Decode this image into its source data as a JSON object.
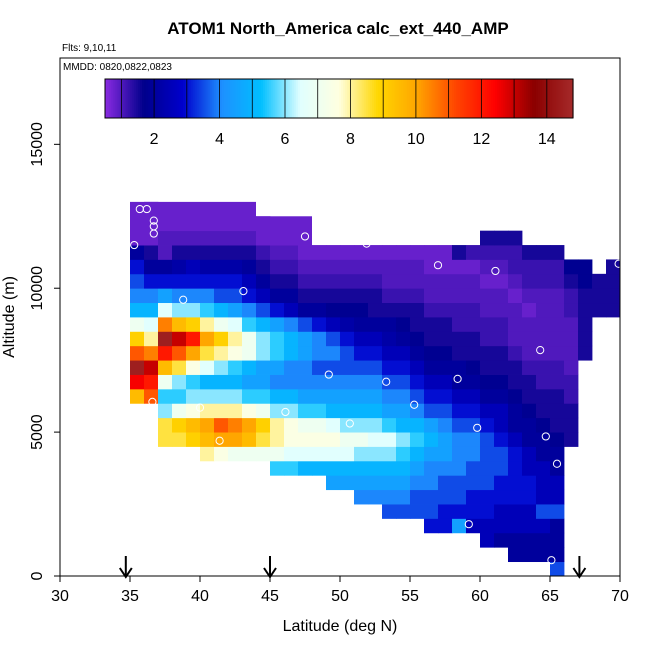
{
  "chart_data": {
    "type": "heatmap",
    "title": "ATOM1 North_America calc_ext_440_AMP",
    "flights_label": "Flts: 9,10,11",
    "dates_label": "MMDD: 0820,0822,0823",
    "xlabel": "Latitude (deg N)",
    "ylabel": "Altitude (m)",
    "xlim": [
      30,
      70
    ],
    "ylim": [
      0,
      18000
    ],
    "xticks": [
      30,
      35,
      40,
      45,
      50,
      55,
      60,
      65,
      70
    ],
    "yticks": [
      0,
      5000,
      10000,
      15000
    ],
    "colorbar": {
      "range": [
        0.5,
        14.8
      ],
      "ticks": [
        2,
        4,
        6,
        8,
        10,
        12,
        14
      ],
      "colors": [
        "#8a2be2",
        "#00008b",
        "#0000cd",
        "#1e90ff",
        "#00bfff",
        "#e0ffff",
        "#ffffe0",
        "#ffd700",
        "#ffa500",
        "#ff4500",
        "#ff0000",
        "#8b0000",
        "#a52a2a"
      ]
    },
    "grid_cell": {
      "dlat": 1,
      "dalt": 500
    },
    "columns": [
      {
        "lat": 35.5,
        "alt_min": 6000,
        "values": [
          9.5,
          12.5,
          14.5,
          11,
          9,
          7,
          5,
          4,
          3.5,
          3,
          2,
          1
        ]
      },
      {
        "lat": 36.5,
        "alt_min": 6000,
        "values": [
          11,
          12,
          13,
          10.5,
          8,
          6.5,
          5,
          4,
          3,
          2,
          1.5,
          1,
          0.8,
          0.8
        ]
      },
      {
        "lat": 37.5,
        "alt_min": 4500,
        "values": [
          8.5,
          8.5,
          6,
          5.5,
          7,
          9.5,
          12,
          14.5,
          10.5,
          6.5,
          4.5,
          3,
          2,
          1,
          1,
          0.8
        ]
      },
      {
        "lat": 38.5,
        "alt_min": 4500,
        "values": [
          8.5,
          9,
          7,
          5.5,
          6,
          8.5,
          11,
          13,
          9.5,
          6,
          4,
          3,
          2.2,
          1.5,
          1,
          0.8
        ]
      },
      {
        "lat": 39.5,
        "alt_min": 4500,
        "values": [
          9,
          9.5,
          7.5,
          6,
          5.5,
          7.5,
          10,
          12,
          9,
          6,
          4,
          3,
          2.5,
          1.5,
          1,
          0.8
        ]
      },
      {
        "lat": 40.5,
        "alt_min": 4000,
        "values": [
          8,
          9.5,
          10,
          8,
          6,
          5,
          6.5,
          8.5,
          10,
          8,
          5.5,
          4,
          3,
          2.2,
          1.5,
          1,
          0.8
        ]
      },
      {
        "lat": 41.5,
        "alt_min": 4000,
        "values": [
          7.5,
          10,
          11,
          8,
          6,
          5,
          6,
          8,
          9,
          7,
          5,
          3.5,
          3,
          2.2,
          1.5,
          1,
          0.8
        ]
      },
      {
        "lat": 42.5,
        "alt_min": 4000,
        "values": [
          7,
          10,
          10.5,
          8,
          6,
          5,
          5.5,
          7.5,
          8,
          6.5,
          4.5,
          3.5,
          3,
          2.2,
          1.5,
          1,
          0.8
        ]
      },
      {
        "lat": 43.5,
        "alt_min": 4000,
        "values": [
          7,
          9.5,
          10,
          7.5,
          5.5,
          4.5,
          5,
          7,
          7,
          5.5,
          4,
          3,
          2.5,
          2,
          1.5,
          1,
          0.8
        ]
      },
      {
        "lat": 44.5,
        "alt_min": 4000,
        "values": [
          7,
          8.5,
          9,
          7,
          5.5,
          4.5,
          4.5,
          6,
          6,
          5,
          3.5,
          2.5,
          2,
          1.5,
          1.2,
          1,
          0.8
        ]
      },
      {
        "lat": 45.5,
        "alt_min": 3500,
        "values": [
          5.5,
          7,
          8,
          8,
          6,
          5,
          4,
          4.5,
          5.5,
          5.5,
          4.5,
          3,
          2,
          1.5,
          1.2,
          1,
          0.8
        ]
      },
      {
        "lat": 46.5,
        "alt_min": 3500,
        "values": [
          5.5,
          6.5,
          7.5,
          7.5,
          6,
          5,
          4,
          4,
          5,
          5,
          4,
          2.5,
          2,
          1.5,
          1.2,
          1,
          0.8
        ]
      },
      {
        "lat": 47.5,
        "alt_min": 3500,
        "values": [
          5,
          6.5,
          7.5,
          7,
          5.5,
          4.5,
          4,
          4,
          4.5,
          4.5,
          3.5,
          2,
          1.5,
          1.2,
          1,
          0.8
        ]
      },
      {
        "lat": 48.5,
        "alt_min": 3500,
        "values": [
          5,
          6.5,
          7.5,
          7,
          5.5,
          4.5,
          4,
          3.5,
          4,
          4,
          3,
          2,
          1.5,
          1.2,
          1,
          0.8
        ]
      },
      {
        "lat": 49.5,
        "alt_min": 3000,
        "values": [
          4.5,
          5,
          6.5,
          7.5,
          6.5,
          5,
          4.5,
          4,
          3.5,
          4,
          3.5,
          2.5,
          1.8,
          1.5,
          1.2,
          1,
          0.8
        ]
      },
      {
        "lat": 50.5,
        "alt_min": 3000,
        "values": [
          4.5,
          5,
          6.5,
          7,
          6,
          5,
          4.5,
          4,
          3.5,
          3.5,
          3,
          2.2,
          1.8,
          1.5,
          1.2,
          1,
          0.8
        ]
      },
      {
        "lat": 51.5,
        "alt_min": 2500,
        "values": [
          4,
          4.5,
          5,
          6,
          7,
          6,
          5,
          4.5,
          4,
          3.5,
          3,
          2.5,
          2,
          1.8,
          1.5,
          1.2,
          1,
          0.8
        ]
      },
      {
        "lat": 52.5,
        "alt_min": 2500,
        "values": [
          4,
          4.5,
          5,
          6,
          6.5,
          6,
          5,
          4.5,
          4,
          3.5,
          3,
          2.5,
          2,
          1.5,
          1.5,
          1.2,
          1,
          0.8
        ]
      },
      {
        "lat": 53.5,
        "alt_min": 2000,
        "values": [
          3.5,
          4,
          4.5,
          5,
          6,
          6.5,
          5.5,
          4.5,
          4,
          3.5,
          3,
          2.5,
          2.2,
          2,
          1.5,
          1.2,
          1,
          1,
          0.8
        ]
      },
      {
        "lat": 54.5,
        "alt_min": 2000,
        "values": [
          3.5,
          4,
          4.5,
          5,
          5.5,
          6,
          5,
          4.5,
          4,
          3.5,
          3,
          2.5,
          2,
          1.8,
          1.5,
          1.2,
          1,
          1,
          0.8
        ]
      },
      {
        "lat": 55.5,
        "alt_min": 2000,
        "values": [
          3.5,
          3.5,
          4,
          4.5,
          5,
          5.5,
          5,
          4,
          3.5,
          3,
          2.5,
          2,
          1.8,
          1.5,
          1.5,
          1.2,
          1,
          1,
          0.8
        ]
      },
      {
        "lat": 56.5,
        "alt_min": 1500,
        "values": [
          3,
          3.5,
          3.5,
          4,
          4,
          4.5,
          5,
          4.5,
          3.5,
          3,
          2.5,
          2,
          1.8,
          1.5,
          1.5,
          1.2,
          1,
          1,
          0.8,
          0.8
        ]
      },
      {
        "lat": 57.5,
        "alt_min": 1500,
        "values": [
          3,
          3,
          3.5,
          3.5,
          4,
          4.5,
          4.5,
          4,
          3.5,
          3,
          2.5,
          2,
          1.8,
          1.5,
          1.5,
          1.2,
          1,
          1,
          0.8,
          0.8
        ]
      },
      {
        "lat": 58.5,
        "alt_min": 1500,
        "values": [
          4.5,
          3,
          3.5,
          3.5,
          4,
          4,
          4,
          3.5,
          3,
          2.5,
          2,
          2,
          1.5,
          1.5,
          1.2,
          1.2,
          1,
          1,
          0.8,
          1.5
        ]
      },
      {
        "lat": 59.5,
        "alt_min": 1500,
        "values": [
          2.5,
          3,
          3,
          3.5,
          3.5,
          4,
          4,
          3.5,
          3,
          2.5,
          2,
          1.8,
          1.5,
          1.5,
          1.2,
          1.2,
          1,
          1,
          0.8,
          1.2
        ]
      },
      {
        "lat": 60.5,
        "alt_min": 1000,
        "values": [
          2.5,
          2.5,
          3,
          3,
          3.5,
          3.5,
          3.5,
          3.5,
          3,
          2.5,
          2,
          1.8,
          1.5,
          1.5,
          1.2,
          1.2,
          1,
          1,
          0.8,
          1,
          1.2,
          1.5
        ]
      },
      {
        "lat": 61.5,
        "alt_min": 1000,
        "values": [
          2,
          2.5,
          2.5,
          3,
          3,
          3.5,
          3.5,
          3,
          2.5,
          2.5,
          2,
          1.8,
          1.5,
          1.5,
          1.2,
          1.2,
          1,
          1,
          0.8,
          1,
          1.2,
          1.5
        ]
      },
      {
        "lat": 62.5,
        "alt_min": 500,
        "values": [
          2,
          2,
          2.5,
          2.5,
          3,
          3,
          3,
          3,
          2.5,
          2,
          2,
          1.8,
          1.5,
          1.5,
          1.2,
          1,
          1,
          1,
          0.8,
          1,
          1.2,
          1.2,
          1.5
        ]
      },
      {
        "lat": 63.5,
        "alt_min": 500,
        "values": [
          2,
          2,
          2.5,
          2.5,
          3,
          3,
          2.5,
          2.5,
          2,
          2,
          1.8,
          1.5,
          1.5,
          1.2,
          1,
          1,
          1,
          0.8,
          1,
          1.2,
          1.2,
          1.5
        ]
      },
      {
        "lat": 64.5,
        "alt_min": 500,
        "values": [
          2,
          2,
          2.5,
          3.5,
          2.5,
          2.5,
          2.5,
          2,
          2,
          1.8,
          1.5,
          1.5,
          1.2,
          1.2,
          1,
          1,
          1,
          1,
          1,
          1.2,
          1.2,
          1.5
        ]
      },
      {
        "lat": 65.5,
        "alt_min": 0,
        "values": [
          3.5,
          2,
          2,
          2,
          3.5,
          2.5,
          2.5,
          2,
          2,
          1.8,
          1.5,
          1.5,
          1.5,
          1.2,
          1.2,
          1,
          1,
          1,
          1,
          1,
          1.2,
          1.2,
          1.5
        ]
      },
      {
        "lat": 66.5,
        "alt_min": 4500,
        "values": [
          1.5,
          1.5,
          1.5,
          1.2,
          1.2,
          1,
          1,
          1,
          1,
          1.2,
          1.2,
          1.5,
          1.8
        ]
      },
      {
        "lat": 67.5,
        "alt_min": 7500,
        "values": [
          1.5,
          1.5,
          1.5,
          1.5,
          1.5,
          1.8,
          1.8
        ]
      },
      {
        "lat": 68.5,
        "alt_min": 9000,
        "values": [
          1.5,
          1.5,
          1.5
        ]
      },
      {
        "lat": 69.5,
        "alt_min": 9000,
        "values": [
          1.5,
          1.5,
          1.5,
          1.5
        ]
      }
    ],
    "band_top": [
      {
        "lat_min": 35,
        "lat_max": 37,
        "alt_min": 11500,
        "values": [
          0.8,
          0.8,
          0.8
        ]
      },
      {
        "lat_min": 37,
        "lat_max": 44,
        "alt_min": 12000,
        "values": [
          0.8,
          0.8
        ]
      },
      {
        "lat_min": 44,
        "lat_max": 48,
        "alt_min": 11500,
        "values": [
          0.8,
          0.8
        ]
      }
    ],
    "points": [
      {
        "lat": 35.7,
        "alt": 12750
      },
      {
        "lat": 36.2,
        "alt": 12750
      },
      {
        "lat": 36.7,
        "alt": 12350
      },
      {
        "lat": 36.7,
        "alt": 12150
      },
      {
        "lat": 36.7,
        "alt": 11900
      },
      {
        "lat": 35.3,
        "alt": 11500
      },
      {
        "lat": 47.5,
        "alt": 11800
      },
      {
        "lat": 51.9,
        "alt": 11550
      },
      {
        "lat": 57.0,
        "alt": 10800
      },
      {
        "lat": 61.1,
        "alt": 10600
      },
      {
        "lat": 69.9,
        "alt": 10850
      },
      {
        "lat": 43.1,
        "alt": 9900
      },
      {
        "lat": 38.8,
        "alt": 9600
      },
      {
        "lat": 64.3,
        "alt": 7850
      },
      {
        "lat": 34.7,
        "alt": 7150
      },
      {
        "lat": 49.2,
        "alt": 7000
      },
      {
        "lat": 53.3,
        "alt": 6750
      },
      {
        "lat": 58.4,
        "alt": 6850
      },
      {
        "lat": 36.6,
        "alt": 6050
      },
      {
        "lat": 40.0,
        "alt": 5850
      },
      {
        "lat": 46.1,
        "alt": 5700
      },
      {
        "lat": 55.3,
        "alt": 5950
      },
      {
        "lat": 50.7,
        "alt": 5300
      },
      {
        "lat": 59.8,
        "alt": 5150
      },
      {
        "lat": 64.7,
        "alt": 4850
      },
      {
        "lat": 41.4,
        "alt": 4700
      },
      {
        "lat": 65.5,
        "alt": 3900
      },
      {
        "lat": 59.2,
        "alt": 1800
      },
      {
        "lat": 65.1,
        "alt": 550
      }
    ],
    "arrows": [
      34.7,
      45.0,
      67.1
    ]
  }
}
